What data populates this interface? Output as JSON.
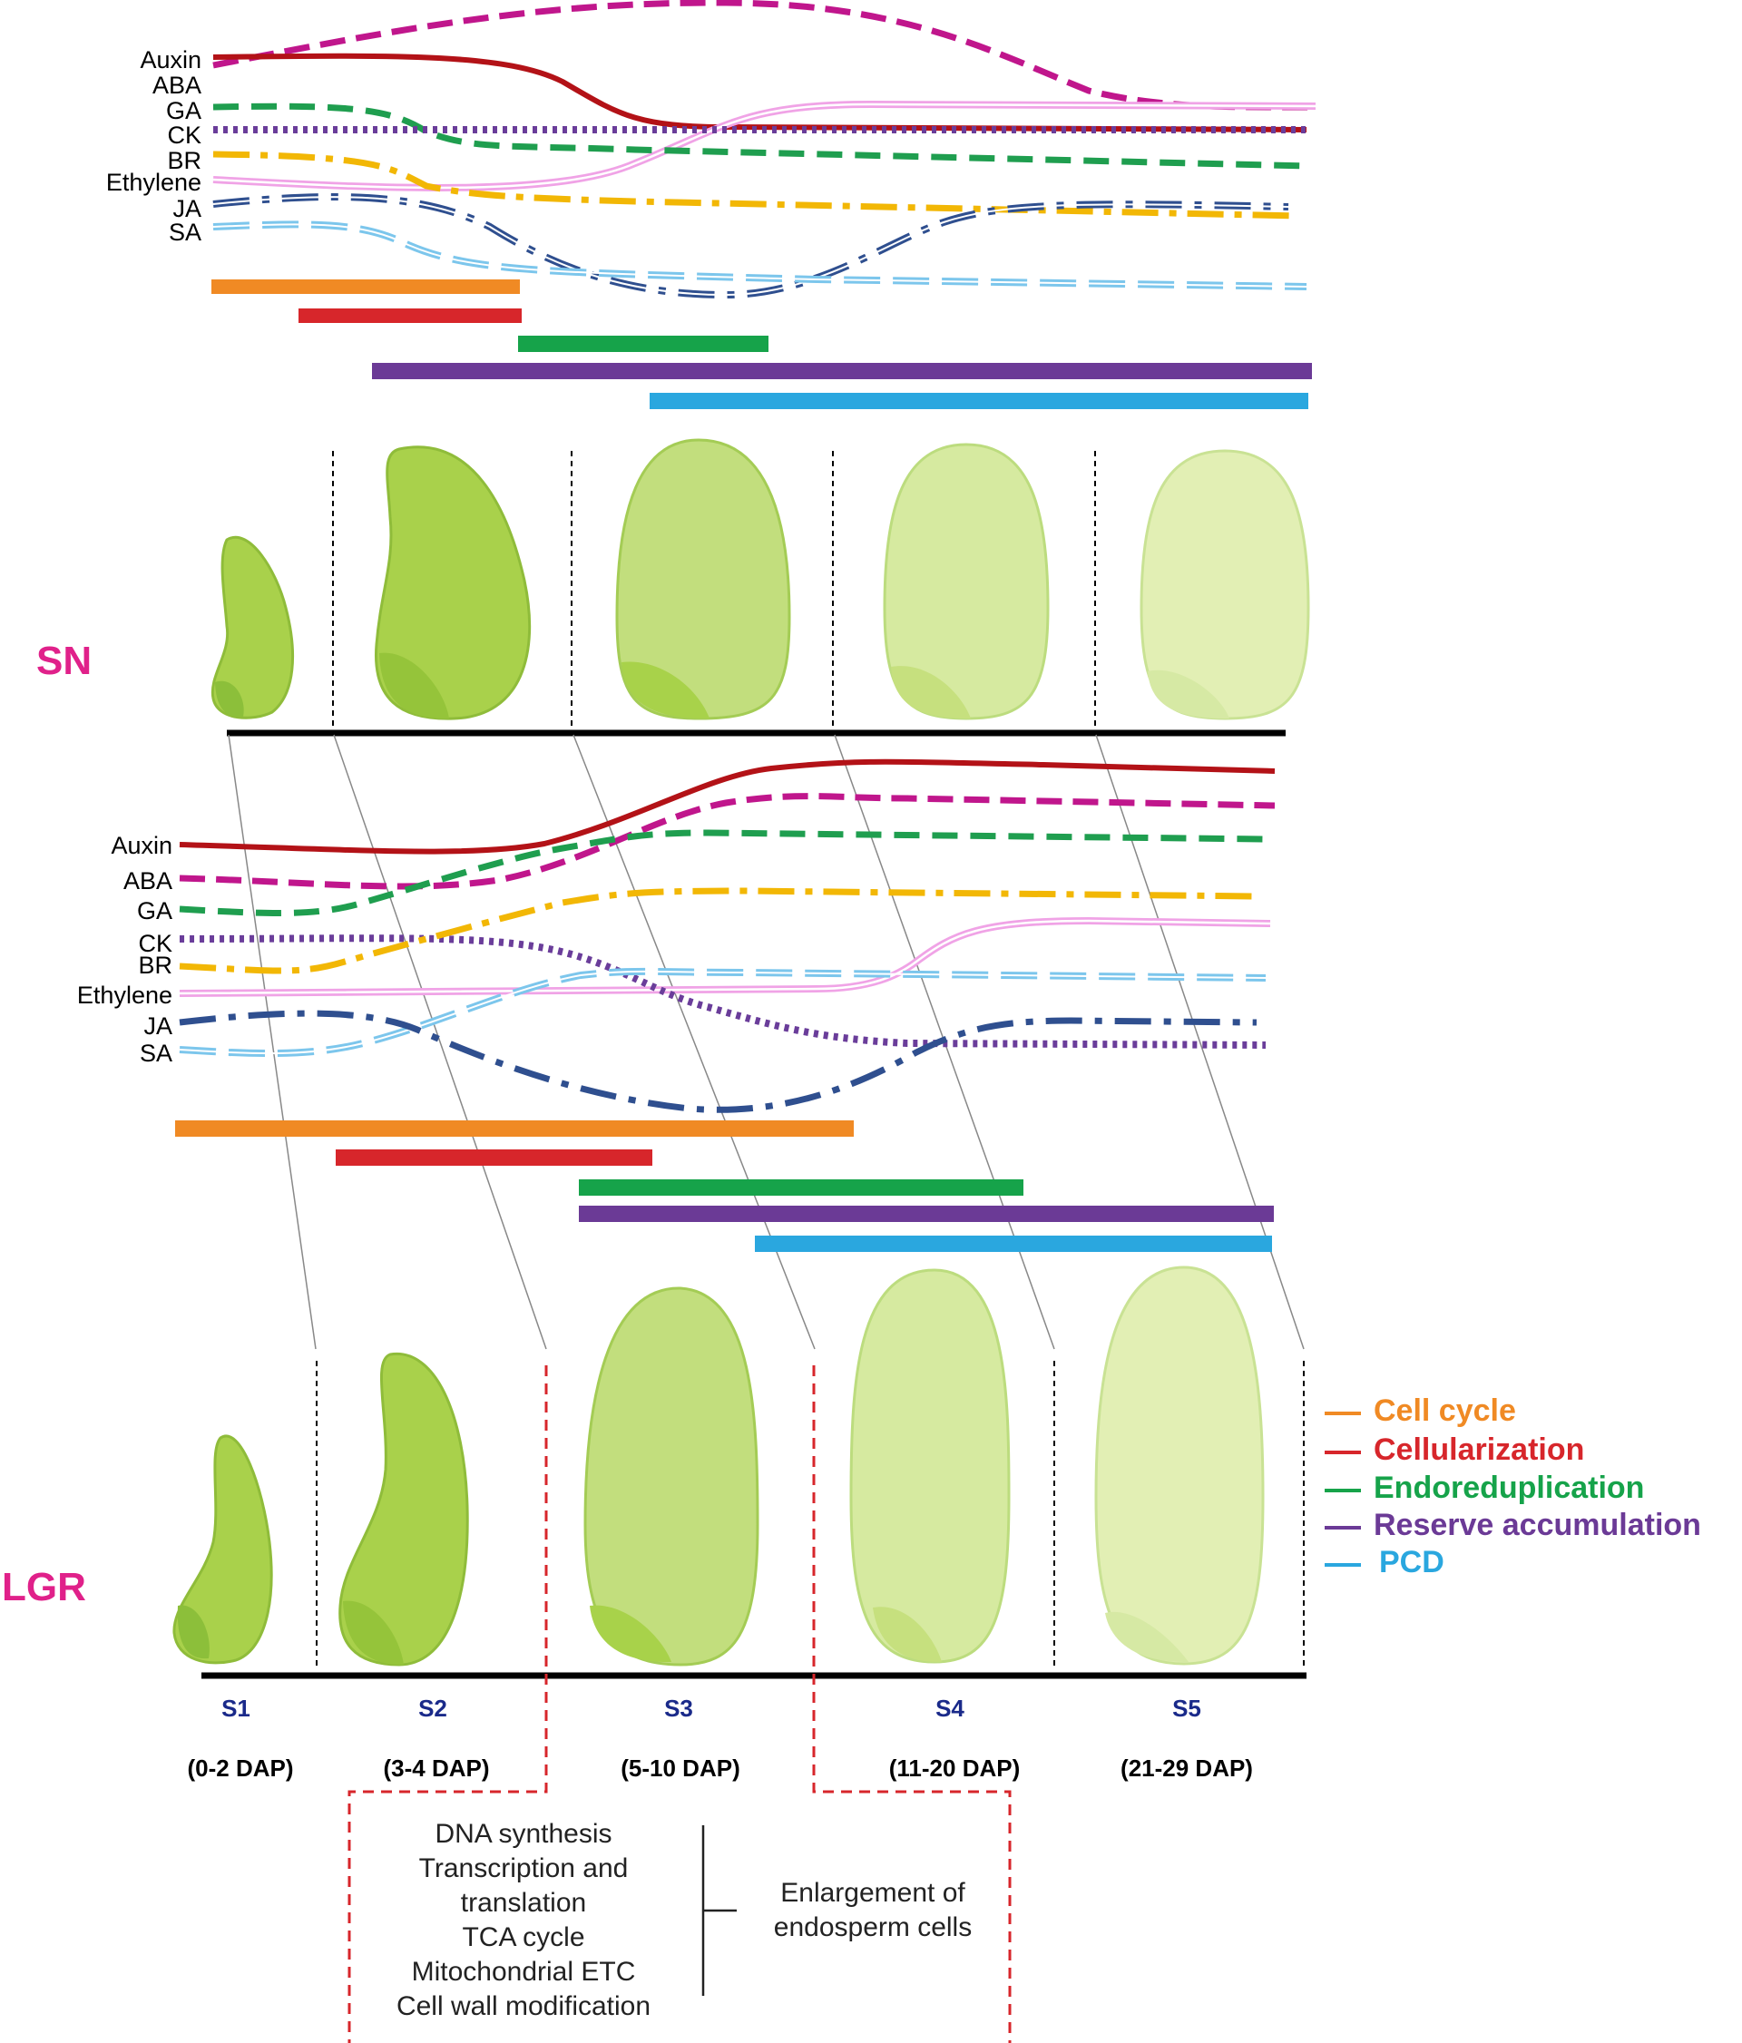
{
  "panels": {
    "top": "SN",
    "bottom": "LGR",
    "color": "#e0218a"
  },
  "hormones": [
    "Auxin",
    "ABA",
    "GA",
    "CK",
    "BR",
    "Ethylene",
    "JA",
    "SA"
  ],
  "hormone_colors": {
    "Auxin": "#b31217",
    "ABA": "#c0168c",
    "GA": "#1f9e4f",
    "CK": "#6a3d9a",
    "BR": "#f2b705",
    "Ethylene": "#f0a3e6",
    "JA": "#2f4f8f",
    "SA": "#7cc6ec"
  },
  "processes": [
    {
      "name": "Cell cycle",
      "color": "#f08a24"
    },
    {
      "name": "Cellularization",
      "color": "#d7262b"
    },
    {
      "name": "Endoreduplication",
      "color": "#16a34a"
    },
    {
      "name": "Reserve accumulation",
      "color": "#6b3a96"
    },
    {
      "name": "PCD",
      "color": "#2aa7df"
    }
  ],
  "stages": [
    {
      "name": "S1",
      "dap": "(0-2 DAP)"
    },
    {
      "name": "S2",
      "dap": "(3-4 DAP)"
    },
    {
      "name": "S3",
      "dap": "(5-10 DAP)"
    },
    {
      "name": "S4",
      "dap": "(11-20 DAP)"
    },
    {
      "name": "S5",
      "dap": "(21-29 DAP)"
    }
  ],
  "stage_color": "#1a2a8a",
  "annotation": {
    "items": [
      "DNA synthesis",
      "Transcription and",
      "translation",
      "TCA cycle",
      "Mitochondrial ETC",
      "Cell wall modification"
    ],
    "result_line1": "Enlargement of",
    "result_line2": "endosperm cells"
  }
}
